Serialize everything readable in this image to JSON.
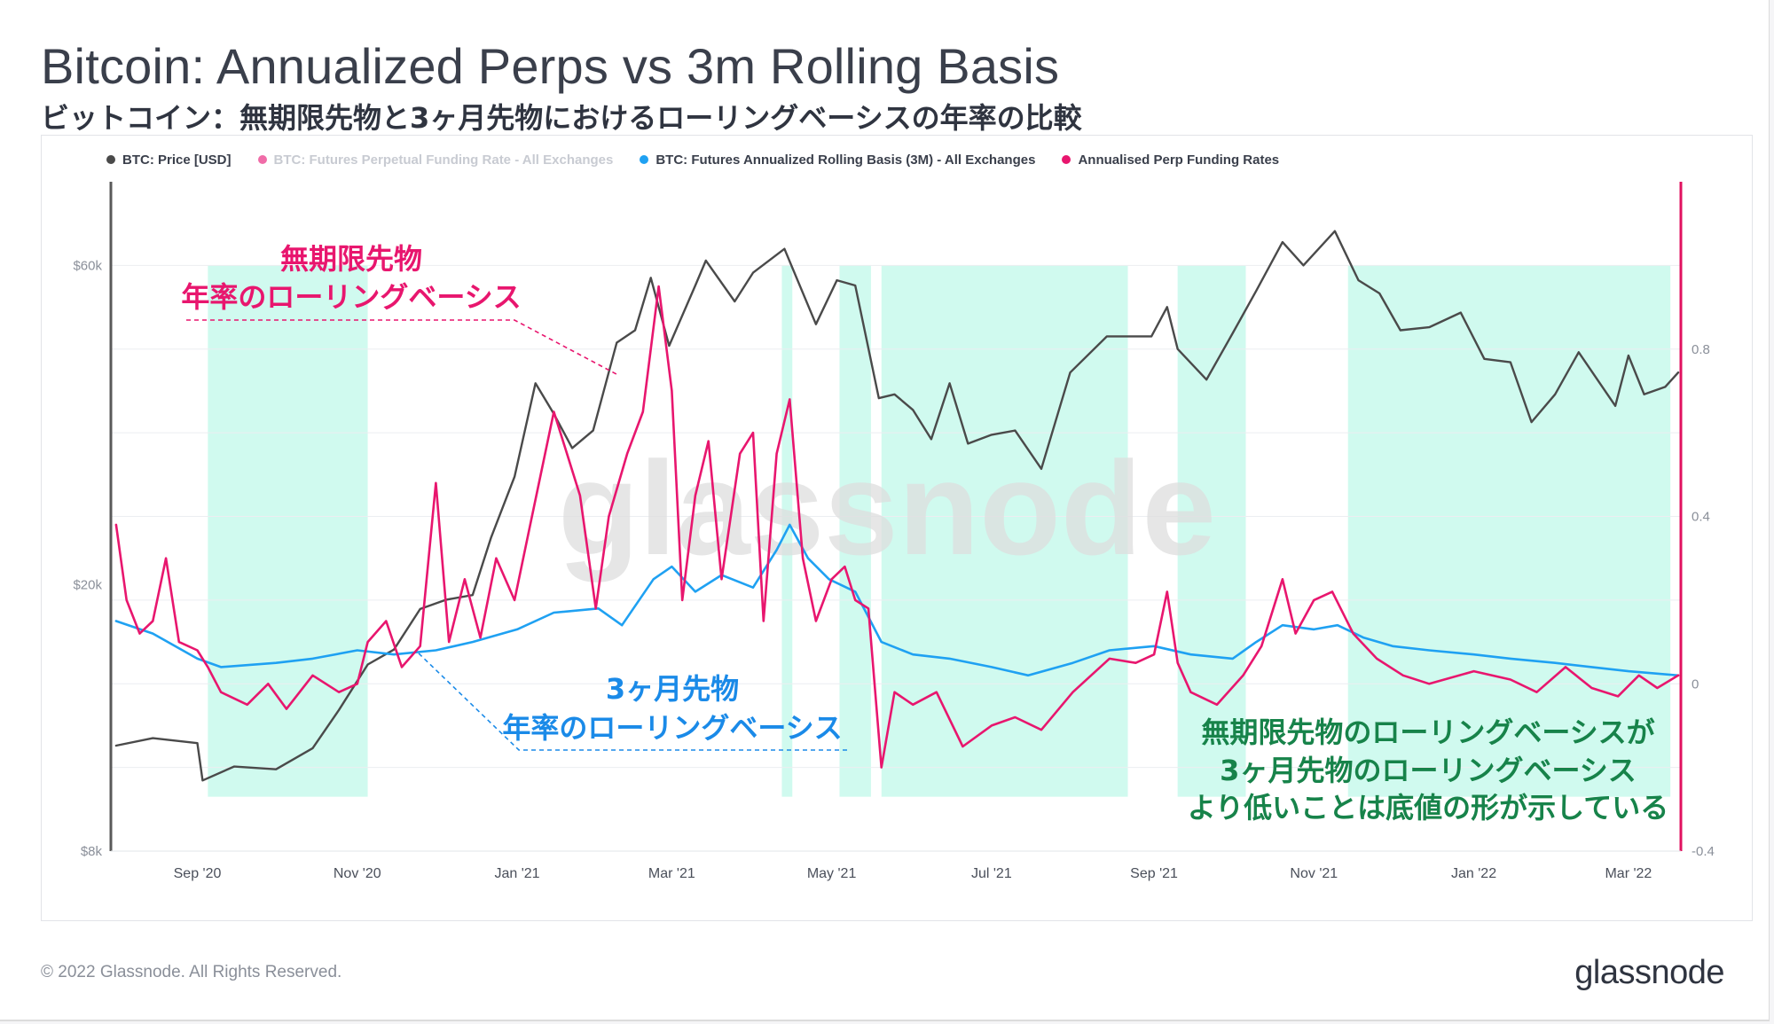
{
  "title": "Bitcoin: Annualized Perps vs 3m Rolling Basis",
  "subtitle": "ビットコイン：無期限先物と3ヶ月先物におけるローリングベーシスの年率の比較",
  "watermark": "glassnode",
  "footer": {
    "copyright": "© 2022 Glassnode. All Rights Reserved.",
    "logo": "glassnode"
  },
  "colors": {
    "price": "#4a4a4a",
    "perp": "#e8166e",
    "perp_raw": "#f06ca8",
    "basis": "#1fa1f2",
    "shade": "#cdfaee",
    "right_axis": "#e0115f",
    "ann_pink": "#e8166e",
    "ann_blue": "#1a8ae8",
    "ann_green": "#17834a"
  },
  "legend": [
    {
      "label": "BTC: Price [USD]",
      "color": "#4a4a4a",
      "dim": false
    },
    {
      "label": "BTC: Futures Perpetual Funding Rate - All Exchanges",
      "color": "#f06ca8",
      "dim": true
    },
    {
      "label": "BTC: Futures Annualized Rolling Basis (3M) - All Exchanges",
      "color": "#1fa1f2",
      "dim": false
    },
    {
      "label": "Annualised Perp Funding Rates",
      "color": "#e8166e",
      "dim": false
    }
  ],
  "annotations": {
    "perp_line1": "無期限先物",
    "perp_line2": "年率のローリングベーシス",
    "basis_line1": "3ヶ月先物",
    "basis_line2": "年率のローリングベーシス",
    "bottom_line1": "無期限先物のローリングベーシスが",
    "bottom_line2": "3ヶ月先物のローリングベーシス",
    "bottom_line3": "より低いことは底値の形が示している"
  },
  "chart_data": {
    "type": "line",
    "x_ticks": [
      "Sep '20",
      "Nov '20",
      "Jan '21",
      "Mar '21",
      "May '21",
      "Jul '21",
      "Sep '21",
      "Nov '21",
      "Jan '22",
      "Mar '22"
    ],
    "x_tick_dates": [
      "2020-09-01",
      "2020-11-01",
      "2021-01-01",
      "2021-03-01",
      "2021-05-01",
      "2021-07-01",
      "2021-09-01",
      "2021-11-01",
      "2022-01-01",
      "2022-03-01"
    ],
    "x_range": [
      "2020-07-30",
      "2022-03-21"
    ],
    "left_axis": {
      "scale": "log",
      "range": [
        8000,
        80000
      ],
      "ticks": [
        8000,
        20000,
        60000
      ],
      "tick_labels": [
        "$8k",
        "$20k",
        "$60k"
      ]
    },
    "right_axis": {
      "scale": "linear",
      "range": [
        -0.4,
        1.2
      ],
      "ticks": [
        -0.4,
        0,
        0.4,
        0.8
      ],
      "tick_labels": [
        "-0.4",
        "0",
        "0.4",
        "0.8"
      ]
    },
    "shaded_ranges": [
      [
        "2020-09-05",
        "2020-11-05"
      ],
      [
        "2021-04-12",
        "2021-04-16"
      ],
      [
        "2021-05-04",
        "2021-05-16"
      ],
      [
        "2021-05-20",
        "2021-08-22"
      ],
      [
        "2021-09-10",
        "2021-10-06"
      ],
      [
        "2021-11-14",
        "2022-03-17"
      ]
    ],
    "series": [
      {
        "name": "BTC: Price [USD]",
        "axis": "left",
        "points": [
          [
            "2020-08-01",
            11500
          ],
          [
            "2020-08-15",
            11800
          ],
          [
            "2020-09-01",
            11600
          ],
          [
            "2020-09-03",
            10200
          ],
          [
            "2020-09-15",
            10700
          ],
          [
            "2020-10-01",
            10600
          ],
          [
            "2020-10-15",
            11400
          ],
          [
            "2020-10-25",
            13000
          ],
          [
            "2020-11-05",
            15200
          ],
          [
            "2020-11-15",
            16000
          ],
          [
            "2020-11-25",
            18400
          ],
          [
            "2020-12-05",
            19000
          ],
          [
            "2020-12-15",
            19300
          ],
          [
            "2020-12-22",
            23500
          ],
          [
            "2020-12-31",
            29000
          ],
          [
            "2021-01-08",
            40000
          ],
          [
            "2021-01-15",
            36000
          ],
          [
            "2021-01-22",
            32000
          ],
          [
            "2021-01-30",
            34000
          ],
          [
            "2021-02-08",
            46000
          ],
          [
            "2021-02-15",
            48000
          ],
          [
            "2021-02-21",
            57500
          ],
          [
            "2021-02-28",
            45500
          ],
          [
            "2021-03-10",
            56000
          ],
          [
            "2021-03-14",
            61000
          ],
          [
            "2021-03-25",
            53000
          ],
          [
            "2021-04-01",
            58500
          ],
          [
            "2021-04-13",
            63500
          ],
          [
            "2021-04-25",
            49000
          ],
          [
            "2021-05-03",
            57000
          ],
          [
            "2021-05-10",
            56000
          ],
          [
            "2021-05-19",
            38000
          ],
          [
            "2021-05-25",
            38500
          ],
          [
            "2021-06-01",
            36500
          ],
          [
            "2021-06-08",
            33000
          ],
          [
            "2021-06-15",
            40000
          ],
          [
            "2021-06-22",
            32500
          ],
          [
            "2021-07-01",
            33500
          ],
          [
            "2021-07-10",
            34000
          ],
          [
            "2021-07-20",
            29800
          ],
          [
            "2021-07-31",
            41500
          ],
          [
            "2021-08-14",
            47000
          ],
          [
            "2021-08-31",
            47000
          ],
          [
            "2021-09-06",
            52000
          ],
          [
            "2021-09-10",
            45000
          ],
          [
            "2021-09-21",
            40500
          ],
          [
            "2021-10-01",
            47500
          ],
          [
            "2021-10-10",
            55000
          ],
          [
            "2021-10-20",
            65000
          ],
          [
            "2021-10-28",
            60000
          ],
          [
            "2021-11-09",
            67500
          ],
          [
            "2021-11-18",
            57000
          ],
          [
            "2021-11-26",
            54500
          ],
          [
            "2021-12-04",
            48000
          ],
          [
            "2021-12-15",
            48500
          ],
          [
            "2021-12-27",
            51000
          ],
          [
            "2022-01-05",
            43500
          ],
          [
            "2022-01-15",
            43000
          ],
          [
            "2022-01-23",
            35000
          ],
          [
            "2022-02-01",
            38500
          ],
          [
            "2022-02-10",
            44500
          ],
          [
            "2022-02-24",
            37000
          ],
          [
            "2022-03-01",
            44000
          ],
          [
            "2022-03-07",
            38500
          ],
          [
            "2022-03-15",
            39500
          ],
          [
            "2022-03-20",
            41500
          ]
        ]
      },
      {
        "name": "BTC: Futures Annualized Rolling Basis (3M) - All Exchanges",
        "axis": "right",
        "points": [
          [
            "2020-08-01",
            0.15
          ],
          [
            "2020-08-15",
            0.12
          ],
          [
            "2020-09-01",
            0.06
          ],
          [
            "2020-09-10",
            0.04
          ],
          [
            "2020-10-01",
            0.05
          ],
          [
            "2020-10-15",
            0.06
          ],
          [
            "2020-11-01",
            0.08
          ],
          [
            "2020-11-15",
            0.07
          ],
          [
            "2020-12-01",
            0.08
          ],
          [
            "2020-12-15",
            0.1
          ],
          [
            "2021-01-01",
            0.13
          ],
          [
            "2021-01-15",
            0.17
          ],
          [
            "2021-02-01",
            0.18
          ],
          [
            "2021-02-10",
            0.14
          ],
          [
            "2021-02-22",
            0.25
          ],
          [
            "2021-03-01",
            0.28
          ],
          [
            "2021-03-10",
            0.22
          ],
          [
            "2021-03-20",
            0.26
          ],
          [
            "2021-04-01",
            0.23
          ],
          [
            "2021-04-10",
            0.32
          ],
          [
            "2021-04-15",
            0.38
          ],
          [
            "2021-04-22",
            0.3
          ],
          [
            "2021-04-30",
            0.25
          ],
          [
            "2021-05-10",
            0.22
          ],
          [
            "2021-05-20",
            0.1
          ],
          [
            "2021-06-01",
            0.07
          ],
          [
            "2021-06-15",
            0.06
          ],
          [
            "2021-07-01",
            0.04
          ],
          [
            "2021-07-15",
            0.02
          ],
          [
            "2021-08-01",
            0.05
          ],
          [
            "2021-08-15",
            0.08
          ],
          [
            "2021-09-01",
            0.09
          ],
          [
            "2021-09-15",
            0.07
          ],
          [
            "2021-10-01",
            0.06
          ],
          [
            "2021-10-10",
            0.1
          ],
          [
            "2021-10-20",
            0.14
          ],
          [
            "2021-11-01",
            0.13
          ],
          [
            "2021-11-10",
            0.14
          ],
          [
            "2021-11-20",
            0.11
          ],
          [
            "2021-12-01",
            0.09
          ],
          [
            "2021-12-15",
            0.08
          ],
          [
            "2022-01-01",
            0.07
          ],
          [
            "2022-01-15",
            0.06
          ],
          [
            "2022-02-01",
            0.05
          ],
          [
            "2022-02-15",
            0.04
          ],
          [
            "2022-03-01",
            0.03
          ],
          [
            "2022-03-20",
            0.02
          ]
        ]
      },
      {
        "name": "Annualised Perp Funding Rates",
        "axis": "right",
        "points": [
          [
            "2020-08-01",
            0.38
          ],
          [
            "2020-08-05",
            0.2
          ],
          [
            "2020-08-10",
            0.12
          ],
          [
            "2020-08-15",
            0.15
          ],
          [
            "2020-08-20",
            0.3
          ],
          [
            "2020-08-25",
            0.1
          ],
          [
            "2020-09-01",
            0.08
          ],
          [
            "2020-09-05",
            0.04
          ],
          [
            "2020-09-10",
            -0.02
          ],
          [
            "2020-09-20",
            -0.05
          ],
          [
            "2020-09-28",
            0.0
          ],
          [
            "2020-10-05",
            -0.06
          ],
          [
            "2020-10-15",
            0.02
          ],
          [
            "2020-10-25",
            -0.02
          ],
          [
            "2020-11-01",
            0.0
          ],
          [
            "2020-11-05",
            0.1
          ],
          [
            "2020-11-12",
            0.15
          ],
          [
            "2020-11-18",
            0.04
          ],
          [
            "2020-11-25",
            0.09
          ],
          [
            "2020-12-01",
            0.48
          ],
          [
            "2020-12-06",
            0.1
          ],
          [
            "2020-12-12",
            0.25
          ],
          [
            "2020-12-18",
            0.11
          ],
          [
            "2020-12-24",
            0.3
          ],
          [
            "2020-12-31",
            0.2
          ],
          [
            "2021-01-05",
            0.35
          ],
          [
            "2021-01-10",
            0.5
          ],
          [
            "2021-01-15",
            0.65
          ],
          [
            "2021-01-20",
            0.55
          ],
          [
            "2021-01-25",
            0.45
          ],
          [
            "2021-01-31",
            0.18
          ],
          [
            "2021-02-05",
            0.4
          ],
          [
            "2021-02-12",
            0.55
          ],
          [
            "2021-02-18",
            0.65
          ],
          [
            "2021-02-24",
            0.95
          ],
          [
            "2021-03-01",
            0.7
          ],
          [
            "2021-03-05",
            0.2
          ],
          [
            "2021-03-10",
            0.45
          ],
          [
            "2021-03-15",
            0.58
          ],
          [
            "2021-03-20",
            0.25
          ],
          [
            "2021-03-27",
            0.55
          ],
          [
            "2021-04-01",
            0.6
          ],
          [
            "2021-04-05",
            0.15
          ],
          [
            "2021-04-10",
            0.55
          ],
          [
            "2021-04-15",
            0.68
          ],
          [
            "2021-04-20",
            0.3
          ],
          [
            "2021-04-25",
            0.15
          ],
          [
            "2021-05-01",
            0.25
          ],
          [
            "2021-05-06",
            0.28
          ],
          [
            "2021-05-10",
            0.2
          ],
          [
            "2021-05-15",
            0.18
          ],
          [
            "2021-05-20",
            -0.2
          ],
          [
            "2021-05-25",
            -0.02
          ],
          [
            "2021-06-01",
            -0.05
          ],
          [
            "2021-06-10",
            -0.02
          ],
          [
            "2021-06-20",
            -0.15
          ],
          [
            "2021-07-01",
            -0.1
          ],
          [
            "2021-07-10",
            -0.08
          ],
          [
            "2021-07-20",
            -0.11
          ],
          [
            "2021-08-01",
            -0.02
          ],
          [
            "2021-08-15",
            0.06
          ],
          [
            "2021-08-25",
            0.05
          ],
          [
            "2021-09-01",
            0.07
          ],
          [
            "2021-09-06",
            0.22
          ],
          [
            "2021-09-10",
            0.05
          ],
          [
            "2021-09-15",
            -0.02
          ],
          [
            "2021-09-25",
            -0.05
          ],
          [
            "2021-10-05",
            0.02
          ],
          [
            "2021-10-12",
            0.09
          ],
          [
            "2021-10-20",
            0.25
          ],
          [
            "2021-10-25",
            0.12
          ],
          [
            "2021-11-01",
            0.2
          ],
          [
            "2021-11-08",
            0.22
          ],
          [
            "2021-11-16",
            0.12
          ],
          [
            "2021-11-25",
            0.06
          ],
          [
            "2021-12-05",
            0.02
          ],
          [
            "2021-12-15",
            0.0
          ],
          [
            "2022-01-01",
            0.03
          ],
          [
            "2022-01-15",
            0.01
          ],
          [
            "2022-01-25",
            -0.02
          ],
          [
            "2022-02-05",
            0.04
          ],
          [
            "2022-02-15",
            -0.01
          ],
          [
            "2022-02-25",
            -0.03
          ],
          [
            "2022-03-05",
            0.02
          ],
          [
            "2022-03-12",
            -0.01
          ],
          [
            "2022-03-20",
            0.02
          ]
        ]
      }
    ]
  }
}
